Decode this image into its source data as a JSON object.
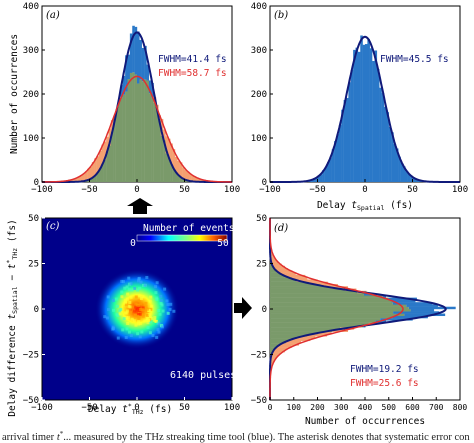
{
  "caption_fragment": "arrival timer t*... measured by the THz streaking time tool (blue). The asterisk denotes that systematic error con",
  "colors": {
    "blue_hist": "#2a78c8",
    "blue_fit": "#101a7a",
    "orange_hist": "#f4a070",
    "overlap_hist": "#7a9a6a",
    "red_fit": "#e03030",
    "fwhm_blue": "#101a7a",
    "fwhm_red": "#e03030"
  },
  "chart_data": [
    {
      "id": "a",
      "type": "bar",
      "panel_label": "(a)",
      "xlabel": "",
      "ylabel": "Number of occurrences",
      "xlim": [
        -100,
        100
      ],
      "ylim": [
        0,
        400
      ],
      "xticks": [
        "−100",
        "−50",
        "0",
        "50",
        "100"
      ],
      "yticks": [
        "0",
        "100",
        "200",
        "300",
        "400"
      ],
      "series": [
        {
          "name": "FWHM=41.4 fs",
          "sigma_fs": 17.6,
          "peak": 340,
          "color": "blue"
        },
        {
          "name": "FWHM=58.7 fs",
          "sigma_fs": 24.9,
          "peak": 240,
          "color": "red"
        }
      ],
      "annotations": [
        "FWHM=41.4 fs",
        "FWHM=58.7 fs"
      ]
    },
    {
      "id": "b",
      "type": "bar",
      "panel_label": "(b)",
      "xlabel": "Delay t_Spatial (fs)",
      "ylabel": "",
      "xlim": [
        -100,
        100
      ],
      "ylim": [
        0,
        400
      ],
      "xticks": [
        "−100",
        "−50",
        "0",
        "50",
        "100"
      ],
      "yticks": [
        "0",
        "100",
        "200",
        "300",
        "400"
      ],
      "series": [
        {
          "name": "FWHM=45.5 fs",
          "sigma_fs": 19.3,
          "peak": 330,
          "color": "blue"
        }
      ],
      "annotations": [
        "FWHM=45.5 fs"
      ]
    },
    {
      "id": "c",
      "type": "heatmap",
      "panel_label": "(c)",
      "xlabel": "Delay t*_THz (fs)",
      "ylabel": "Delay difference t_Spatial − t*_THz (fs)",
      "xlim": [
        -100,
        100
      ],
      "ylim": [
        -50,
        50
      ],
      "xticks": [
        "−100",
        "−50",
        "0",
        "50",
        "100"
      ],
      "yticks": [
        "−50",
        "−25",
        "0",
        "25",
        "50"
      ],
      "colorbar": {
        "label": "Number of events",
        "min": "0",
        "max": "50"
      },
      "annotations": [
        "6140 pulses"
      ]
    },
    {
      "id": "d",
      "type": "bar",
      "panel_label": "(d)",
      "xlabel": "Number of occurrences",
      "ylabel": "",
      "xlim": [
        0,
        800
      ],
      "ylim": [
        -50,
        50
      ],
      "xticks": [
        "0",
        "100",
        "200",
        "300",
        "400",
        "500",
        "600",
        "700",
        "800"
      ],
      "yticks": [
        "−50",
        "−25",
        "0",
        "25",
        "50"
      ],
      "series": [
        {
          "name": "FWHM=19.2 fs",
          "sigma_fs": 8.15,
          "peak": 740,
          "color": "blue"
        },
        {
          "name": "FWHM=25.6 fs",
          "sigma_fs": 10.9,
          "peak": 560,
          "color": "red"
        }
      ],
      "annotations": [
        "FWHM=19.2 fs",
        "FWHM=25.6 fs"
      ]
    }
  ]
}
